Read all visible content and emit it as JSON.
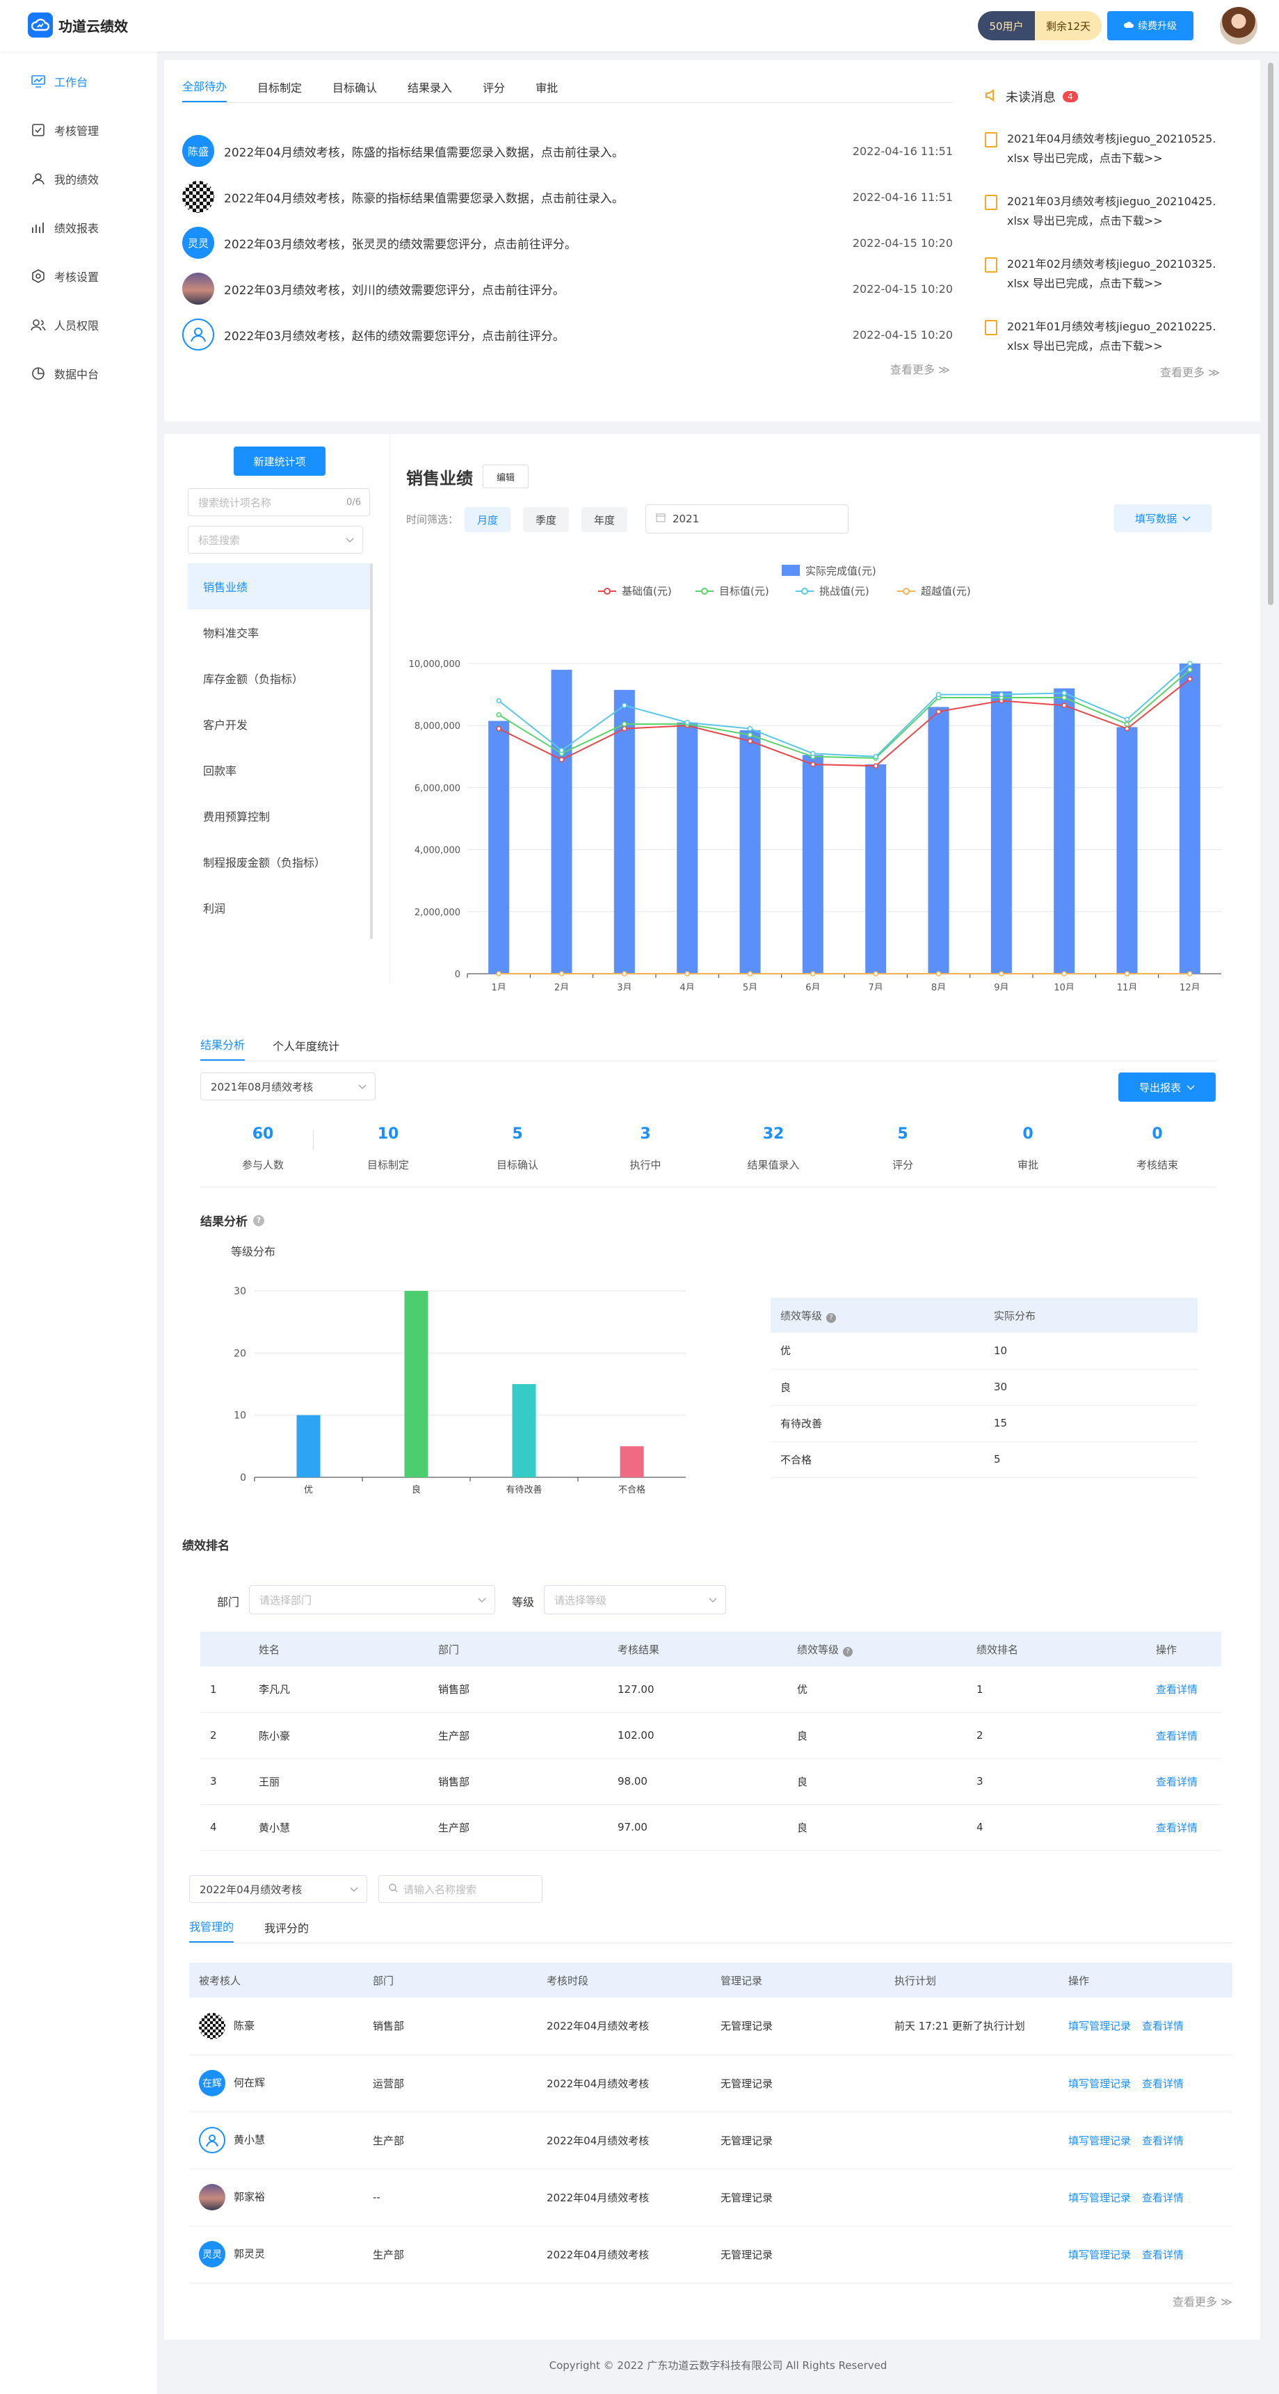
{
  "app": {
    "name": "功道云绩效",
    "users_badge": "50用户",
    "days_left": "剩余12天",
    "renew": "续费升级"
  },
  "nav": [
    {
      "label": "工作台",
      "icon": "dashboard-icon"
    },
    {
      "label": "考核管理",
      "icon": "checklist-icon"
    },
    {
      "label": "我的绩效",
      "icon": "user-icon"
    },
    {
      "label": "绩效报表",
      "icon": "bar-chart-icon"
    },
    {
      "label": "考核设置",
      "icon": "gear-icon"
    },
    {
      "label": "人员权限",
      "icon": "people-icon"
    },
    {
      "label": "数据中台",
      "icon": "pie-icon"
    }
  ],
  "todo": {
    "tabs": [
      "全部待办",
      "目标制定",
      "目标确认",
      "结果录入",
      "评分",
      "审批"
    ],
    "items": [
      {
        "avatar": "陈盛",
        "text": "2022年04月绩效考核，陈盛的指标结果值需要您录入数据，点击前往录入。",
        "time": "2022-04-16 11:51"
      },
      {
        "avatar": "",
        "text": "2022年04月绩效考核，陈豪的指标结果值需要您录入数据，点击前往录入。",
        "time": "2022-04-16 11:51"
      },
      {
        "avatar": "灵灵",
        "text": "2022年03月绩效考核，张灵灵的绩效需要您评分，点击前往评分。",
        "time": "2022-04-15 10:20"
      },
      {
        "avatar": "",
        "text": "2022年03月绩效考核，刘川的绩效需要您评分，点击前往评分。",
        "time": "2022-04-15 10:20"
      },
      {
        "avatar": "",
        "text": "2022年03月绩效考核，赵伟的绩效需要您评分，点击前往评分。",
        "time": "2022-04-15 10:20"
      }
    ],
    "more": "查看更多 ≫"
  },
  "messages": {
    "title": "未读消息",
    "count": "4",
    "items": [
      {
        "line1": "2021年04月绩效考核jieguo_20210525.",
        "line2": "xlsx 导出已完成，点击下载>>"
      },
      {
        "line1": "2021年03月绩效考核jieguo_20210425.",
        "line2": "xlsx 导出已完成，点击下载>>"
      },
      {
        "line1": "2021年02月绩效考核jieguo_20210325.",
        "line2": "xlsx 导出已完成，点击下载>>"
      },
      {
        "line1": "2021年01月绩效考核jieguo_20210225.",
        "line2": "xlsx 导出已完成，点击下载>>"
      }
    ],
    "more": "查看更多 ≫"
  },
  "stats_panel": {
    "new_button": "新建统计项",
    "search_placeholder": "搜索统计项名称",
    "search_count": "0/6",
    "tag_placeholder": "标签搜索",
    "items": [
      "销售业绩",
      "物料准交率",
      "库存金额（负指标）",
      "客户开发",
      "回款率",
      "费用预算控制",
      "制程报废金额（负指标）",
      "利润"
    ]
  },
  "sales": {
    "title": "销售业绩",
    "edit": "编辑",
    "time_label": "时间筛选：",
    "segments": [
      "月度",
      "季度",
      "年度"
    ],
    "year": "2021",
    "fill_button": "填写数据"
  },
  "chart_data": {
    "type": "bar",
    "categories": [
      "1月",
      "2月",
      "3月",
      "4月",
      "5月",
      "6月",
      "7月",
      "8月",
      "9月",
      "10月",
      "11月",
      "12月"
    ],
    "ylim": [
      0,
      10000000
    ],
    "yticks": [
      "0",
      "2,000,000",
      "4,000,000",
      "6,000,000",
      "8,000,000",
      "10,000,000"
    ],
    "series": [
      {
        "name": "实际完成值(元)",
        "kind": "bar",
        "color": "#5b8ff9",
        "values": [
          8150000,
          9800000,
          9150000,
          8100000,
          7850000,
          7050000,
          6750000,
          8600000,
          9100000,
          9200000,
          7950000,
          10000000
        ]
      },
      {
        "name": "基础值(元)",
        "kind": "line",
        "color": "#e8484b",
        "values": [
          7900000,
          6900000,
          7900000,
          8000000,
          7500000,
          6750000,
          6700000,
          8450000,
          8800000,
          8650000,
          7900000,
          9500000
        ]
      },
      {
        "name": "目标值(元)",
        "kind": "line",
        "color": "#5ad36b",
        "values": [
          8350000,
          7100000,
          8050000,
          8050000,
          7700000,
          7000000,
          6950000,
          8900000,
          8900000,
          8900000,
          8050000,
          9800000
        ]
      },
      {
        "name": "挑战值(元)",
        "kind": "line",
        "color": "#58c8e6",
        "values": [
          8800000,
          7200000,
          8650000,
          8100000,
          7900000,
          7100000,
          7000000,
          9000000,
          9000000,
          9050000,
          8200000,
          10000000
        ]
      },
      {
        "name": "超越值(元)",
        "kind": "line",
        "color": "#f5b454",
        "values": [
          0,
          0,
          0,
          0,
          0,
          0,
          0,
          0,
          0,
          0,
          0,
          0
        ]
      }
    ]
  },
  "analysis": {
    "tabs": [
      "结果分析",
      "个人年度统计"
    ],
    "period": "2021年08月绩效考核",
    "export": "导出报表",
    "stats": [
      {
        "value": "60",
        "label": "参与人数"
      },
      {
        "value": "10",
        "label": "目标制定"
      },
      {
        "value": "5",
        "label": "目标确认"
      },
      {
        "value": "3",
        "label": "执行中"
      },
      {
        "value": "32",
        "label": "结果值录入"
      },
      {
        "value": "5",
        "label": "评分"
      },
      {
        "value": "0",
        "label": "审批"
      },
      {
        "value": "0",
        "label": "考核结束"
      }
    ],
    "section_title": "结果分析",
    "dist_title": "等级分布",
    "grade_chart": {
      "type": "bar",
      "categories": [
        "优",
        "良",
        "有待改善",
        "不合格"
      ],
      "values": [
        10,
        30,
        15,
        5
      ],
      "colors": [
        "#2ea4f5",
        "#4ccd6e",
        "#35cbc7",
        "#ef6b83"
      ],
      "ylim": [
        0,
        30
      ],
      "yticks": [
        "0",
        "10",
        "20",
        "30"
      ]
    },
    "dist_table": {
      "headers": [
        "绩效等级",
        "实际分布"
      ],
      "rows": [
        [
          "优",
          "10"
        ],
        [
          "良",
          "30"
        ],
        [
          "有待改善",
          "15"
        ],
        [
          "不合格",
          "5"
        ]
      ]
    }
  },
  "ranking": {
    "title": "绩效排名",
    "dept_label": "部门",
    "dept_placeholder": "请选择部门",
    "grade_label": "等级",
    "grade_placeholder": "请选择等级",
    "headers": [
      "",
      "姓名",
      "部门",
      "考核结果",
      "绩效等级",
      "绩效排名",
      "操作"
    ],
    "rows": [
      [
        "1",
        "李凡凡",
        "销售部",
        "127.00",
        "优",
        "1",
        "查看详情"
      ],
      [
        "2",
        "陈小豪",
        "生产部",
        "102.00",
        "良",
        "2",
        "查看详情"
      ],
      [
        "3",
        "王丽",
        "销售部",
        "98.00",
        "良",
        "3",
        "查看详情"
      ],
      [
        "4",
        "黄小慧",
        "生产部",
        "97.00",
        "良",
        "4",
        "查看详情"
      ]
    ]
  },
  "manage": {
    "period": "2022年04月绩效考核",
    "search_placeholder": "请输入名称搜索",
    "tabs": [
      "我管理的",
      "我评分的"
    ],
    "headers": [
      "被考核人",
      "部门",
      "考核时段",
      "管理记录",
      "执行计划",
      "操作"
    ],
    "rows": [
      {
        "avatar": "",
        "name": "陈豪",
        "dept": "销售部",
        "period": "2022年04月绩效考核",
        "record": "无管理记录",
        "plan": "前天 17:21 更新了执行计划",
        "op1": "填写管理记录",
        "op2": "查看详情"
      },
      {
        "avatar": "在辉",
        "name": "何在辉",
        "dept": "运营部",
        "period": "2022年04月绩效考核",
        "record": "无管理记录",
        "plan": "",
        "op1": "填写管理记录",
        "op2": "查看详情"
      },
      {
        "avatar": "",
        "name": "黄小慧",
        "dept": "生产部",
        "period": "2022年04月绩效考核",
        "record": "无管理记录",
        "plan": "",
        "op1": "填写管理记录",
        "op2": "查看详情"
      },
      {
        "avatar": "",
        "name": "郭家裕",
        "dept": "--",
        "period": "2022年04月绩效考核",
        "record": "无管理记录",
        "plan": "",
        "op1": "填写管理记录",
        "op2": "查看详情"
      },
      {
        "avatar": "灵灵",
        "name": "郭灵灵",
        "dept": "生产部",
        "period": "2022年04月绩效考核",
        "record": "无管理记录",
        "plan": "",
        "op1": "填写管理记录",
        "op2": "查看详情"
      }
    ],
    "more": "查看更多 ≫"
  },
  "footer": "Copyright © 2022 广东功道云数字科技有限公司 All Rights Reserved"
}
